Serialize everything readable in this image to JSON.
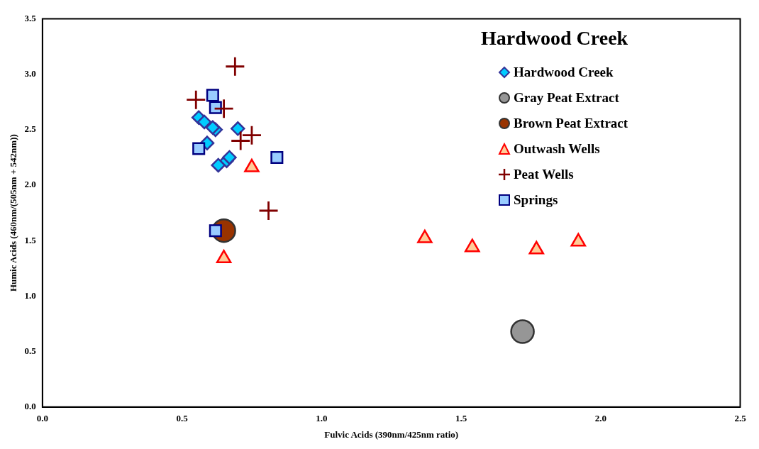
{
  "chart_data": {
    "type": "scatter",
    "title": "Hardwood Creek",
    "xlabel": "Fulvic Acids (390nm/425nm ratio)",
    "ylabel": "Humic Acids (460nm/(505nm + 542nm))",
    "xlim": [
      0,
      2.5
    ],
    "xticks": [
      {
        "value": 0,
        "label": "0.0"
      },
      {
        "value": 0.5,
        "label": "0.5"
      },
      {
        "value": 1,
        "label": "1.0"
      },
      {
        "value": 1.5,
        "label": "1.5"
      },
      {
        "value": 2,
        "label": "2.0"
      },
      {
        "value": 2.5,
        "label": "2.5"
      }
    ],
    "ylim": [
      0,
      3.5
    ],
    "yticks": [
      {
        "value": 0,
        "label": "0.0"
      },
      {
        "value": 0.5,
        "label": "0.5"
      },
      {
        "value": 1,
        "label": "1.0"
      },
      {
        "value": 1.5,
        "label": "1.5"
      },
      {
        "value": 2,
        "label": "2.0"
      },
      {
        "value": 2.5,
        "label": "2.5"
      },
      {
        "value": 3,
        "label": "3.0"
      },
      {
        "value": 3.5,
        "label": "3.5"
      }
    ],
    "grid": false,
    "legend": "top right",
    "series": [
      {
        "name": "Hardwood Creek",
        "color": "#00ccff",
        "marker": "diamond",
        "x": [
          0.56,
          0.58,
          0.62,
          0.7,
          0.59,
          0.66,
          0.63,
          0.61,
          0.67
        ],
        "values": [
          2.61,
          2.57,
          2.5,
          2.51,
          2.38,
          2.22,
          2.18,
          2.52,
          2.25
        ]
      },
      {
        "name": "Gray Peat Extract",
        "color": "#969696",
        "marker": "circle",
        "x": [
          1.72
        ],
        "values": [
          0.68
        ]
      },
      {
        "name": "Brown Peat Extract",
        "color": "#993300",
        "marker": "circle",
        "x": [
          0.65
        ],
        "values": [
          1.59
        ]
      },
      {
        "name": "Outwash Wells",
        "color": "#ffcc99",
        "marker": "triangle",
        "x": [
          0.75,
          0.65,
          1.37,
          1.54,
          1.77,
          1.92
        ],
        "values": [
          2.16,
          1.34,
          1.52,
          1.44,
          1.42,
          1.49
        ]
      },
      {
        "name": "Peat Wells",
        "color": "#800000",
        "marker": "cross",
        "x": [
          0.69,
          0.55,
          0.65,
          0.75,
          0.71,
          0.81
        ],
        "values": [
          3.07,
          2.77,
          2.69,
          2.45,
          2.4,
          1.77
        ]
      },
      {
        "name": "Springs",
        "color": "#99ccff",
        "marker": "square",
        "x": [
          0.61,
          0.62,
          0.56,
          0.84,
          0.62
        ],
        "values": [
          2.81,
          2.7,
          2.33,
          2.25,
          1.59
        ]
      }
    ]
  }
}
